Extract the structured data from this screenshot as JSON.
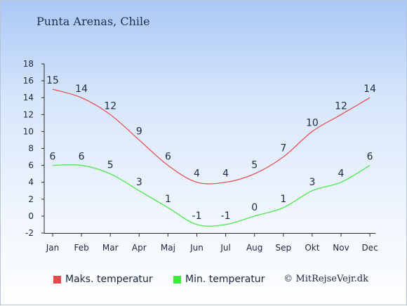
{
  "chart_data": {
    "type": "line",
    "title": "Punta Arenas, Chile",
    "categories": [
      "Jan",
      "Feb",
      "Mar",
      "Apr",
      "Maj",
      "Jun",
      "Jul",
      "Aug",
      "Sep",
      "Okt",
      "Nov",
      "Dec"
    ],
    "ylim": [
      -2,
      18
    ],
    "yticks": [
      -2,
      0,
      2,
      4,
      6,
      8,
      10,
      12,
      14,
      16,
      18
    ],
    "grid": false,
    "legend_position": "bottom",
    "series": [
      {
        "name": "Maks. temperatur",
        "color": "#e84848",
        "values": [
          15,
          14,
          12,
          9,
          6,
          4,
          4,
          5,
          7,
          10,
          12,
          14
        ]
      },
      {
        "name": "Min. temperatur",
        "color": "#3ee83e",
        "values": [
          6,
          6,
          5,
          3,
          1,
          -1,
          -1,
          0,
          1,
          3,
          4,
          6
        ]
      }
    ]
  },
  "credit": "© MitRejseVejr.dk"
}
